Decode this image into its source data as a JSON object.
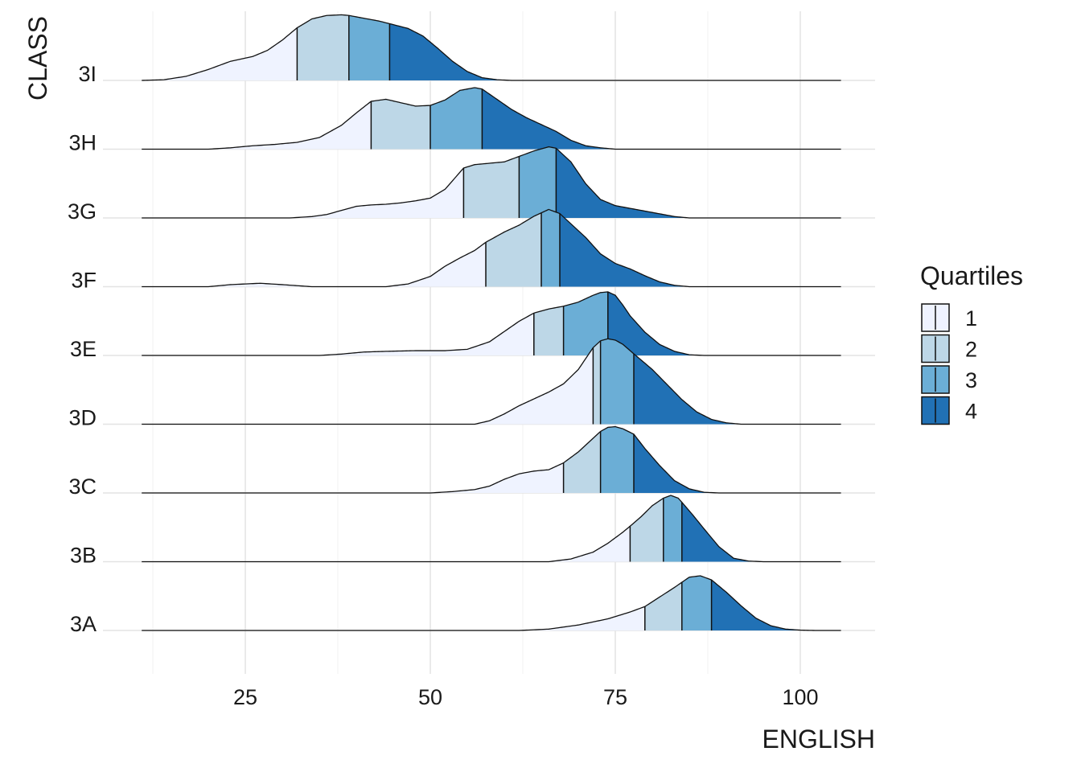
{
  "chart_data": {
    "type": "ridgeline",
    "xlabel": "ENGLISH",
    "ylabel": "CLASS",
    "x_ticks": [
      25,
      50,
      75,
      100
    ],
    "xlim": [
      11,
      105.5
    ],
    "grid": true,
    "legend": {
      "title": "Quartiles",
      "placement": "right",
      "entries": [
        {
          "label": "1",
          "color": "#eff3ff"
        },
        {
          "label": "2",
          "color": "#bdd7e7"
        },
        {
          "label": "3",
          "color": "#6baed6"
        },
        {
          "label": "4",
          "color": "#2171b5"
        }
      ]
    },
    "series": [
      {
        "name": "3A",
        "quartiles": [
          79.0,
          84.0,
          88.0
        ],
        "density": [
          [
            11,
            0
          ],
          [
            62,
            0
          ],
          [
            66,
            0.02
          ],
          [
            70,
            0.08
          ],
          [
            74,
            0.17
          ],
          [
            77,
            0.27
          ],
          [
            79,
            0.35
          ],
          [
            81,
            0.49
          ],
          [
            83,
            0.63
          ],
          [
            85,
            0.78
          ],
          [
            86.5,
            0.8
          ],
          [
            88,
            0.74
          ],
          [
            90,
            0.56
          ],
          [
            92,
            0.36
          ],
          [
            94,
            0.18
          ],
          [
            96,
            0.07
          ],
          [
            98,
            0.02
          ],
          [
            100,
            0.005
          ],
          [
            102,
            0
          ],
          [
            105.5,
            0
          ]
        ]
      },
      {
        "name": "3B",
        "quartiles": [
          77.0,
          81.5,
          84.0
        ],
        "density": [
          [
            11,
            0
          ],
          [
            66,
            0
          ],
          [
            69,
            0.04
          ],
          [
            72,
            0.14
          ],
          [
            74,
            0.27
          ],
          [
            76,
            0.43
          ],
          [
            77,
            0.52
          ],
          [
            78.5,
            0.66
          ],
          [
            80,
            0.82
          ],
          [
            81.5,
            0.93
          ],
          [
            82.5,
            0.97
          ],
          [
            83.5,
            0.93
          ],
          [
            84,
            0.87
          ],
          [
            85.5,
            0.68
          ],
          [
            87,
            0.48
          ],
          [
            89,
            0.22
          ],
          [
            91,
            0.05
          ],
          [
            93,
            0.01
          ],
          [
            95,
            0
          ],
          [
            105.5,
            0
          ]
        ]
      },
      {
        "name": "3C",
        "quartiles": [
          68.0,
          73.0,
          77.5
        ],
        "density": [
          [
            11,
            0
          ],
          [
            50,
            0
          ],
          [
            53,
            0.02
          ],
          [
            56,
            0.05
          ],
          [
            58,
            0.1
          ],
          [
            60,
            0.2
          ],
          [
            62,
            0.28
          ],
          [
            64,
            0.32
          ],
          [
            66,
            0.34
          ],
          [
            68,
            0.44
          ],
          [
            70,
            0.6
          ],
          [
            72,
            0.8
          ],
          [
            73,
            0.9
          ],
          [
            74,
            0.96
          ],
          [
            75,
            0.97
          ],
          [
            76,
            0.94
          ],
          [
            77.5,
            0.86
          ],
          [
            79,
            0.65
          ],
          [
            81,
            0.4
          ],
          [
            83,
            0.18
          ],
          [
            85,
            0.06
          ],
          [
            87,
            0.01
          ],
          [
            89,
            0
          ],
          [
            105.5,
            0
          ]
        ]
      },
      {
        "name": "3D",
        "quartiles": [
          72.0,
          73.0,
          77.5
        ],
        "density": [
          [
            11,
            0
          ],
          [
            56,
            0
          ],
          [
            58,
            0.05
          ],
          [
            60,
            0.15
          ],
          [
            62,
            0.27
          ],
          [
            64,
            0.37
          ],
          [
            66,
            0.47
          ],
          [
            68,
            0.59
          ],
          [
            70,
            0.8
          ],
          [
            72,
            1.12
          ],
          [
            73,
            1.22
          ],
          [
            74,
            1.25
          ],
          [
            75,
            1.23
          ],
          [
            76,
            1.17
          ],
          [
            77.5,
            1.03
          ],
          [
            80,
            0.8
          ],
          [
            82,
            0.58
          ],
          [
            84,
            0.36
          ],
          [
            86,
            0.18
          ],
          [
            88,
            0.07
          ],
          [
            90,
            0.02
          ],
          [
            92,
            0
          ],
          [
            105.5,
            0
          ]
        ]
      },
      {
        "name": "3E",
        "quartiles": [
          64.0,
          68.0,
          74.0
        ],
        "density": [
          [
            11,
            0
          ],
          [
            35,
            0
          ],
          [
            38,
            0.02
          ],
          [
            41,
            0.05
          ],
          [
            44,
            0.06
          ],
          [
            48,
            0.07
          ],
          [
            52,
            0.07
          ],
          [
            55,
            0.09
          ],
          [
            58,
            0.2
          ],
          [
            60,
            0.35
          ],
          [
            62,
            0.5
          ],
          [
            64,
            0.62
          ],
          [
            66,
            0.68
          ],
          [
            68,
            0.72
          ],
          [
            70,
            0.78
          ],
          [
            72,
            0.88
          ],
          [
            73,
            0.92
          ],
          [
            74,
            0.93
          ],
          [
            75,
            0.88
          ],
          [
            76,
            0.74
          ],
          [
            77,
            0.58
          ],
          [
            79,
            0.34
          ],
          [
            81,
            0.16
          ],
          [
            83,
            0.06
          ],
          [
            85,
            0.01
          ],
          [
            87,
            0
          ],
          [
            105.5,
            0
          ]
        ]
      },
      {
        "name": "3F",
        "quartiles": [
          57.5,
          65.0,
          67.5
        ],
        "density": [
          [
            11,
            0
          ],
          [
            20,
            0
          ],
          [
            23,
            0.03
          ],
          [
            27,
            0.05
          ],
          [
            30,
            0.03
          ],
          [
            34,
            0
          ],
          [
            44,
            0
          ],
          [
            47,
            0.04
          ],
          [
            50,
            0.15
          ],
          [
            52,
            0.3
          ],
          [
            54,
            0.42
          ],
          [
            56,
            0.53
          ],
          [
            57.5,
            0.65
          ],
          [
            60,
            0.8
          ],
          [
            62,
            0.9
          ],
          [
            64,
            1.03
          ],
          [
            65,
            1.08
          ],
          [
            66,
            1.13
          ],
          [
            67.5,
            1.07
          ],
          [
            69,
            0.92
          ],
          [
            71,
            0.72
          ],
          [
            73,
            0.48
          ],
          [
            75,
            0.34
          ],
          [
            77,
            0.26
          ],
          [
            79,
            0.16
          ],
          [
            81,
            0.07
          ],
          [
            83,
            0.02
          ],
          [
            85,
            0
          ],
          [
            105.5,
            0
          ]
        ]
      },
      {
        "name": "3G",
        "quartiles": [
          54.5,
          62.0,
          67.0
        ],
        "density": [
          [
            11,
            0
          ],
          [
            31,
            0
          ],
          [
            34,
            0.02
          ],
          [
            36,
            0.05
          ],
          [
            38,
            0.11
          ],
          [
            40,
            0.17
          ],
          [
            42,
            0.19
          ],
          [
            44,
            0.2
          ],
          [
            46,
            0.22
          ],
          [
            48,
            0.25
          ],
          [
            50,
            0.29
          ],
          [
            52,
            0.42
          ],
          [
            54.5,
            0.73
          ],
          [
            56,
            0.78
          ],
          [
            58,
            0.8
          ],
          [
            60,
            0.82
          ],
          [
            62,
            0.9
          ],
          [
            64,
            0.98
          ],
          [
            66,
            1.04
          ],
          [
            67,
            1.02
          ],
          [
            69,
            0.82
          ],
          [
            71,
            0.5
          ],
          [
            73,
            0.27
          ],
          [
            75,
            0.18
          ],
          [
            77,
            0.14
          ],
          [
            79,
            0.1
          ],
          [
            81,
            0.06
          ],
          [
            83,
            0.02
          ],
          [
            85,
            0
          ],
          [
            105.5,
            0
          ]
        ]
      },
      {
        "name": "3H",
        "quartiles": [
          42.0,
          50.0,
          57.0
        ],
        "density": [
          [
            11,
            0
          ],
          [
            20,
            0
          ],
          [
            23,
            0.02
          ],
          [
            26,
            0.05
          ],
          [
            29,
            0.07
          ],
          [
            32,
            0.1
          ],
          [
            35,
            0.17
          ],
          [
            38,
            0.35
          ],
          [
            40,
            0.53
          ],
          [
            42,
            0.7
          ],
          [
            44,
            0.73
          ],
          [
            46,
            0.68
          ],
          [
            48,
            0.63
          ],
          [
            50,
            0.64
          ],
          [
            52,
            0.72
          ],
          [
            54,
            0.86
          ],
          [
            56,
            0.9
          ],
          [
            57,
            0.88
          ],
          [
            59,
            0.73
          ],
          [
            61,
            0.58
          ],
          [
            63,
            0.46
          ],
          [
            65,
            0.36
          ],
          [
            67,
            0.26
          ],
          [
            69,
            0.13
          ],
          [
            71,
            0.05
          ],
          [
            73,
            0.02
          ],
          [
            75,
            0
          ],
          [
            105.5,
            0
          ]
        ]
      },
      {
        "name": "3I",
        "quartiles": [
          32.0,
          39.0,
          44.5
        ],
        "density": [
          [
            11,
            0
          ],
          [
            14,
            0.01
          ],
          [
            17,
            0.06
          ],
          [
            20,
            0.16
          ],
          [
            23,
            0.28
          ],
          [
            26,
            0.35
          ],
          [
            28,
            0.44
          ],
          [
            30,
            0.59
          ],
          [
            32,
            0.77
          ],
          [
            34,
            0.9
          ],
          [
            36,
            0.95
          ],
          [
            38,
            0.96
          ],
          [
            39,
            0.95
          ],
          [
            41,
            0.91
          ],
          [
            43,
            0.87
          ],
          [
            44.5,
            0.83
          ],
          [
            47,
            0.76
          ],
          [
            49,
            0.65
          ],
          [
            51,
            0.47
          ],
          [
            53,
            0.28
          ],
          [
            55,
            0.13
          ],
          [
            57,
            0.04
          ],
          [
            59,
            0.01
          ],
          [
            61,
            0
          ],
          [
            105.5,
            0
          ]
        ]
      }
    ]
  }
}
